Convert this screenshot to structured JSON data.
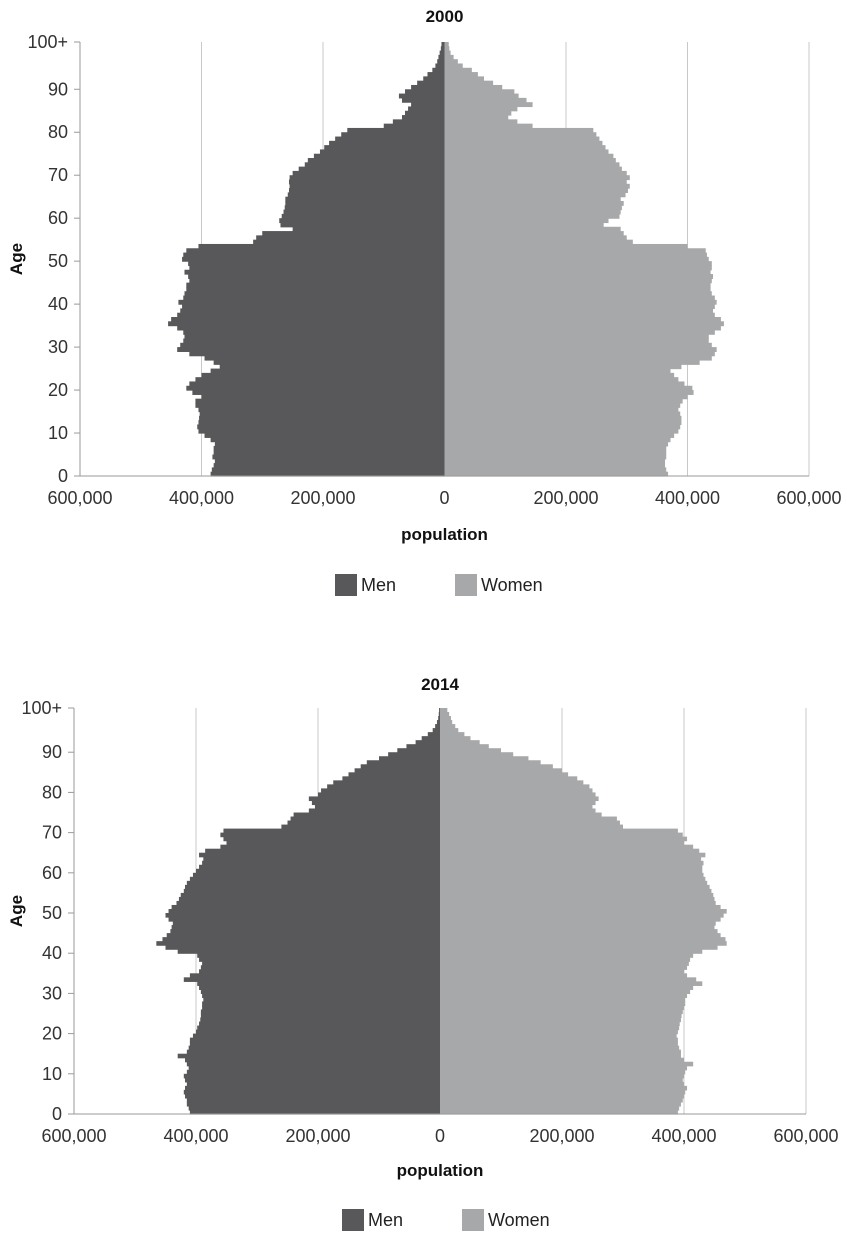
{
  "chart_data": [
    {
      "type": "bar",
      "orientation": "horizontal",
      "layout": "population-pyramid",
      "title": "2000",
      "xlabel": "population",
      "ylabel": "Age",
      "xlim": [
        -600000,
        600000
      ],
      "x_ticks": [
        -600000,
        -400000,
        -200000,
        0,
        200000,
        400000,
        600000
      ],
      "x_tick_labels": [
        "600,000",
        "400,000",
        "200,000",
        "0",
        "200,000",
        "400,000",
        "600,000"
      ],
      "y_ticks": [
        0,
        10,
        20,
        30,
        40,
        50,
        60,
        70,
        80,
        90,
        100
      ],
      "y_tick_labels": [
        "0",
        "10",
        "20",
        "30",
        "40",
        "50",
        "60",
        "70",
        "80",
        "90",
        "100+"
      ],
      "grid": "vertical",
      "legend": "bottom",
      "ages": [
        0,
        1,
        2,
        3,
        4,
        5,
        6,
        7,
        8,
        9,
        10,
        11,
        12,
        13,
        14,
        15,
        16,
        17,
        18,
        19,
        20,
        21,
        22,
        23,
        24,
        25,
        26,
        27,
        28,
        29,
        30,
        31,
        32,
        33,
        34,
        35,
        36,
        37,
        38,
        39,
        40,
        41,
        42,
        43,
        44,
        45,
        46,
        47,
        48,
        49,
        50,
        51,
        52,
        53,
        54,
        55,
        56,
        57,
        58,
        59,
        60,
        61,
        62,
        63,
        64,
        65,
        66,
        67,
        68,
        69,
        70,
        71,
        72,
        73,
        74,
        75,
        76,
        77,
        78,
        79,
        80,
        81,
        82,
        83,
        84,
        85,
        86,
        87,
        88,
        89,
        90,
        91,
        92,
        93,
        94,
        95,
        96,
        97,
        98,
        99,
        100
      ],
      "series": [
        {
          "name": "Men",
          "color": "#58585a",
          "side": "left",
          "values": [
            385000,
            383000,
            380000,
            378000,
            382000,
            380000,
            380000,
            378000,
            385000,
            395000,
            405000,
            407000,
            405000,
            404000,
            403000,
            405000,
            410000,
            410000,
            400000,
            415000,
            425000,
            420000,
            410000,
            400000,
            385000,
            370000,
            380000,
            395000,
            420000,
            440000,
            435000,
            430000,
            428000,
            430000,
            440000,
            455000,
            450000,
            440000,
            435000,
            432000,
            438000,
            430000,
            428000,
            425000,
            425000,
            420000,
            422000,
            428000,
            420000,
            422000,
            432000,
            430000,
            425000,
            405000,
            315000,
            310000,
            300000,
            250000,
            270000,
            272000,
            268000,
            265000,
            263000,
            262000,
            262000,
            258000,
            256000,
            255000,
            256000,
            255000,
            250000,
            240000,
            230000,
            225000,
            215000,
            205000,
            198000,
            190000,
            180000,
            170000,
            160000,
            100000,
            85000,
            70000,
            65000,
            60000,
            55000,
            70000,
            75000,
            65000,
            55000,
            45000,
            35000,
            28000,
            20000,
            15000,
            12000,
            10000,
            8000,
            6000,
            5000
          ]
        },
        {
          "name": "Women",
          "color": "#a7a8aa",
          "side": "right",
          "values": [
            368000,
            365000,
            363000,
            363000,
            365000,
            365000,
            365000,
            368000,
            372000,
            378000,
            385000,
            388000,
            390000,
            390000,
            388000,
            385000,
            388000,
            392000,
            400000,
            410000,
            408000,
            395000,
            385000,
            378000,
            372000,
            390000,
            420000,
            440000,
            445000,
            448000,
            440000,
            435000,
            435000,
            445000,
            455000,
            460000,
            455000,
            445000,
            442000,
            445000,
            448000,
            445000,
            440000,
            438000,
            438000,
            440000,
            442000,
            438000,
            440000,
            440000,
            435000,
            432000,
            430000,
            400000,
            310000,
            300000,
            295000,
            290000,
            262000,
            270000,
            288000,
            290000,
            292000,
            295000,
            290000,
            298000,
            302000,
            305000,
            300000,
            305000,
            300000,
            292000,
            288000,
            282000,
            278000,
            270000,
            265000,
            260000,
            255000,
            250000,
            245000,
            145000,
            120000,
            105000,
            110000,
            120000,
            145000,
            135000,
            122000,
            115000,
            95000,
            80000,
            65000,
            55000,
            45000,
            30000,
            22000,
            15000,
            10000,
            8000,
            7000
          ]
        }
      ]
    },
    {
      "type": "bar",
      "orientation": "horizontal",
      "layout": "population-pyramid",
      "title": "2014",
      "xlabel": "population",
      "ylabel": "Age",
      "xlim": [
        -600000,
        600000
      ],
      "x_ticks": [
        -600000,
        -400000,
        -200000,
        0,
        200000,
        400000,
        600000
      ],
      "x_tick_labels": [
        "600,000",
        "400,000",
        "200,000",
        "0",
        "200,000",
        "400,000",
        "600,000"
      ],
      "y_ticks": [
        0,
        10,
        20,
        30,
        40,
        50,
        60,
        70,
        80,
        90,
        100
      ],
      "y_tick_labels": [
        "0",
        "10",
        "20",
        "30",
        "40",
        "50",
        "60",
        "70",
        "80",
        "90",
        "100+"
      ],
      "grid": "vertical",
      "legend": "bottom",
      "ages": [
        0,
        1,
        2,
        3,
        4,
        5,
        6,
        7,
        8,
        9,
        10,
        11,
        12,
        13,
        14,
        15,
        16,
        17,
        18,
        19,
        20,
        21,
        22,
        23,
        24,
        25,
        26,
        27,
        28,
        29,
        30,
        31,
        32,
        33,
        34,
        35,
        36,
        37,
        38,
        39,
        40,
        41,
        42,
        43,
        44,
        45,
        46,
        47,
        48,
        49,
        50,
        51,
        52,
        53,
        54,
        55,
        56,
        57,
        58,
        59,
        60,
        61,
        62,
        63,
        64,
        65,
        66,
        67,
        68,
        69,
        70,
        71,
        72,
        73,
        74,
        75,
        76,
        77,
        78,
        79,
        80,
        81,
        82,
        83,
        84,
        85,
        86,
        87,
        88,
        89,
        90,
        91,
        92,
        93,
        94,
        95,
        96,
        97,
        98,
        99,
        100
      ],
      "series": [
        {
          "name": "Men",
          "color": "#58585a",
          "side": "left",
          "values": [
            410000,
            412000,
            415000,
            415000,
            418000,
            420000,
            418000,
            415000,
            418000,
            420000,
            415000,
            412000,
            415000,
            418000,
            430000,
            415000,
            412000,
            410000,
            410000,
            405000,
            400000,
            398000,
            395000,
            393000,
            392000,
            392000,
            390000,
            390000,
            388000,
            390000,
            392000,
            395000,
            398000,
            420000,
            410000,
            395000,
            392000,
            390000,
            395000,
            398000,
            430000,
            450000,
            465000,
            455000,
            448000,
            442000,
            440000,
            438000,
            445000,
            450000,
            445000,
            440000,
            432000,
            428000,
            425000,
            420000,
            418000,
            415000,
            410000,
            405000,
            400000,
            395000,
            390000,
            388000,
            395000,
            385000,
            360000,
            350000,
            355000,
            360000,
            355000,
            260000,
            250000,
            245000,
            240000,
            215000,
            205000,
            210000,
            215000,
            200000,
            195000,
            185000,
            175000,
            160000,
            150000,
            140000,
            130000,
            120000,
            100000,
            85000,
            70000,
            55000,
            40000,
            30000,
            20000,
            12000,
            8000,
            5000,
            3000,
            2000,
            1500
          ]
        },
        {
          "name": "Women",
          "color": "#a7a8aa",
          "side": "right",
          "values": [
            390000,
            392000,
            395000,
            398000,
            400000,
            402000,
            405000,
            400000,
            398000,
            400000,
            402000,
            405000,
            415000,
            400000,
            395000,
            395000,
            392000,
            390000,
            390000,
            388000,
            390000,
            392000,
            393000,
            395000,
            396000,
            398000,
            400000,
            402000,
            402000,
            405000,
            410000,
            415000,
            430000,
            420000,
            405000,
            400000,
            405000,
            408000,
            410000,
            415000,
            430000,
            455000,
            470000,
            468000,
            460000,
            455000,
            450000,
            452000,
            460000,
            465000,
            470000,
            460000,
            452000,
            450000,
            448000,
            445000,
            442000,
            438000,
            435000,
            432000,
            430000,
            430000,
            432000,
            428000,
            435000,
            425000,
            415000,
            400000,
            405000,
            398000,
            390000,
            300000,
            295000,
            290000,
            265000,
            255000,
            250000,
            255000,
            260000,
            255000,
            250000,
            245000,
            235000,
            225000,
            210000,
            200000,
            185000,
            165000,
            145000,
            120000,
            100000,
            80000,
            65000,
            50000,
            40000,
            30000,
            25000,
            20000,
            18000,
            15000,
            12000
          ]
        }
      ]
    }
  ],
  "legend": {
    "men_label": "Men",
    "women_label": "Women"
  }
}
